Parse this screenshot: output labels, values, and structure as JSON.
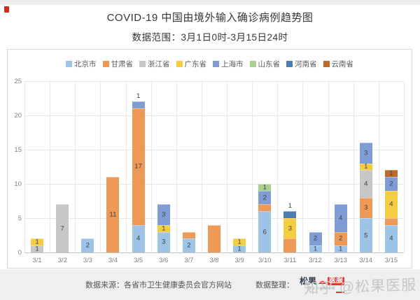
{
  "chart_data": {
    "type": "bar",
    "stacked": true,
    "title": "COVID-19 中国由境外输入确诊病例趋势图",
    "subtitle": "数据范围：3月1日0时-3月15日24时",
    "legend_position": "top",
    "grid": true,
    "xlabel": "",
    "ylabel": "",
    "ylim": [
      0,
      25
    ],
    "yticks": [
      0,
      5,
      10,
      15,
      20,
      25
    ],
    "categories": [
      "3/1",
      "3/2",
      "3/3",
      "3/4",
      "3/5",
      "3/6",
      "3/7",
      "3/8",
      "3/9",
      "3/10",
      "3/11",
      "3/12",
      "3/13",
      "3/14",
      "3/15"
    ],
    "series": [
      {
        "name": "北京市",
        "color": "#9dc3e6",
        "values": [
          0,
          0,
          2,
          0,
          4,
          3,
          2,
          0,
          1,
          6,
          0,
          1,
          1,
          5,
          4
        ],
        "labels": [
          "",
          "",
          "2",
          "",
          "4",
          "3",
          "2",
          "",
          "1",
          "6",
          "",
          "1",
          "1",
          "5",
          "4"
        ]
      },
      {
        "name": "甘肃省",
        "color": "#ed9a58",
        "values": [
          0,
          0,
          0,
          11,
          17,
          0,
          1,
          4,
          0,
          1,
          2,
          0,
          2,
          3,
          1
        ],
        "labels": [
          "",
          "",
          "",
          "11",
          "17",
          "",
          "",
          "",
          "",
          "",
          "",
          "",
          "2",
          "3",
          ""
        ]
      },
      {
        "name": "浙江省",
        "color": "#c7c7c7",
        "values": [
          1,
          7,
          0,
          0,
          0,
          0,
          0,
          0,
          0,
          0,
          0,
          0,
          0,
          4,
          0
        ],
        "labels": [
          "1",
          "7",
          "",
          "",
          "",
          "",
          "",
          "",
          "",
          "",
          "",
          "",
          "",
          "4",
          ""
        ]
      },
      {
        "name": "广东省",
        "color": "#f5cd40",
        "values": [
          1,
          0,
          0,
          0,
          0,
          1,
          0,
          0,
          1,
          0,
          3,
          0,
          0,
          1,
          4
        ],
        "labels": [
          "1",
          "",
          "",
          "",
          "",
          "1",
          "",
          "",
          "1",
          "",
          "3",
          "",
          "",
          "1",
          "4"
        ]
      },
      {
        "name": "上海市",
        "color": "#7f9dd4",
        "values": [
          0,
          0,
          0,
          0,
          1,
          3,
          0,
          0,
          0,
          2,
          0,
          2,
          4,
          3,
          2
        ],
        "labels": [
          "",
          "",
          "",
          "",
          "",
          "3",
          "",
          "",
          "",
          "2",
          "",
          "2",
          "4",
          "3",
          "2"
        ]
      },
      {
        "name": "山东省",
        "color": "#a9d18e",
        "values": [
          0,
          0,
          0,
          0,
          0,
          0,
          0,
          0,
          0,
          1,
          0,
          0,
          0,
          0,
          0
        ],
        "labels": [
          "",
          "",
          "",
          "",
          "",
          "",
          "",
          "",
          "",
          "1",
          "",
          "",
          "",
          "",
          ""
        ]
      },
      {
        "name": "河南省",
        "color": "#4e7cb5",
        "values": [
          0,
          0,
          0,
          0,
          0,
          0,
          0,
          0,
          0,
          0,
          1,
          0,
          0,
          0,
          0
        ],
        "labels": [
          "",
          "",
          "",
          "",
          "",
          "",
          "",
          "",
          "",
          "",
          "",
          "",
          "",
          "",
          ""
        ]
      },
      {
        "name": "云南省",
        "color": "#bf6a2b",
        "values": [
          0,
          0,
          0,
          0,
          0,
          0,
          0,
          0,
          0,
          0,
          0,
          0,
          0,
          0,
          1
        ],
        "labels": [
          "",
          "",
          "",
          "",
          "",
          "",
          "",
          "",
          "",
          "",
          "",
          "",
          "",
          "",
          "1"
        ]
      }
    ],
    "outside_labels": {
      "4": "1",
      "10": "1"
    },
    "totals": [
      2,
      7,
      2,
      11,
      22,
      7,
      3,
      4,
      2,
      10,
      6,
      3,
      7,
      16,
      12
    ]
  },
  "footer": {
    "source": "数据来源：各省市卫生健康委员会官方网站",
    "curation_label": "数据整理：",
    "logo": {
      "name_left": "松果",
      "cloud_icon": "☁",
      "name_right": "医服",
      "subtext": "SongMed"
    },
    "watermark": "知乎 @松果医服"
  }
}
